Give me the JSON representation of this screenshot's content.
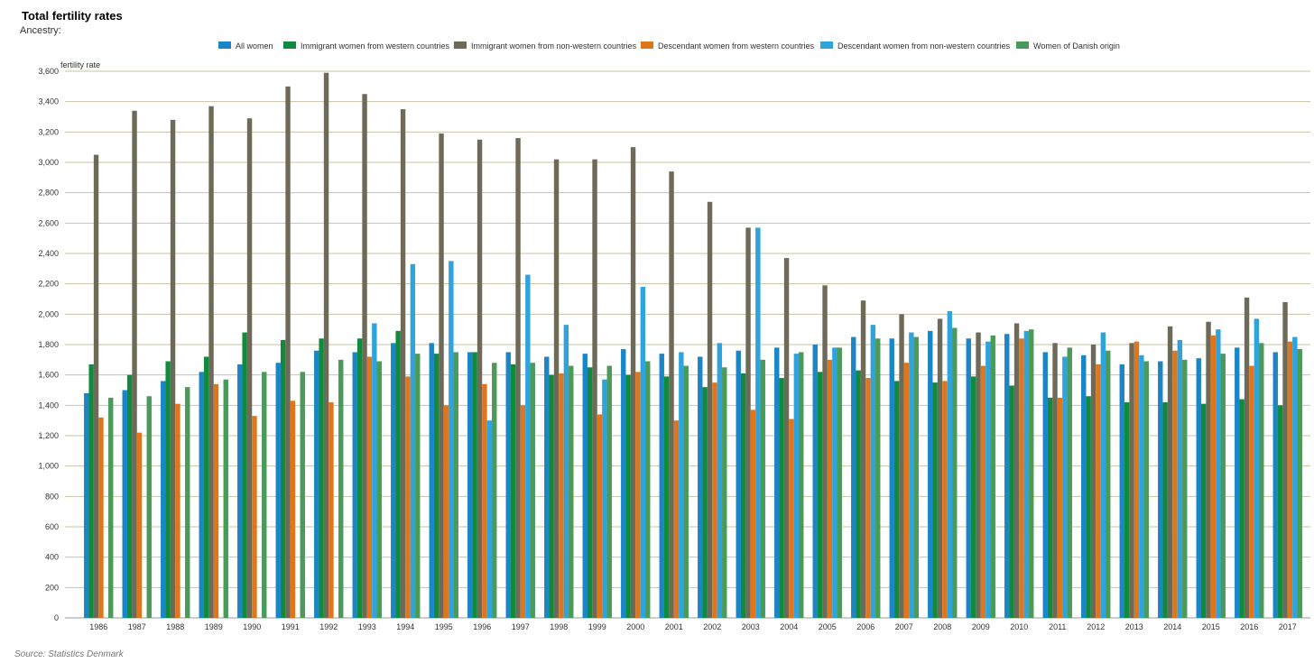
{
  "header": {
    "title": "Total fertility rates",
    "subtitle": "Ancestry:"
  },
  "footer": {
    "source": "Source: Statistics Denmark"
  },
  "chart_data": {
    "type": "bar",
    "title": "Total fertility rates",
    "ylabel": "fertility rate",
    "xlabel": "",
    "ylim": [
      0,
      3600
    ],
    "ytick_step": 200,
    "grid": true,
    "legend_position": "top",
    "categories": [
      "1986",
      "1987",
      "1988",
      "1989",
      "1990",
      "1991",
      "1992",
      "1993",
      "1994",
      "1995",
      "1996",
      "1997",
      "1998",
      "1999",
      "2000",
      "2001",
      "2002",
      "2003",
      "2004",
      "2005",
      "2006",
      "2007",
      "2008",
      "2009",
      "2010",
      "2011",
      "2012",
      "2013",
      "2014",
      "2015",
      "2016",
      "2017"
    ],
    "series": [
      {
        "name": "All women",
        "color": "#1a86c8",
        "values": [
          1480,
          1500,
          1560,
          1620,
          1670,
          1680,
          1760,
          1750,
          1810,
          1810,
          1750,
          1750,
          1720,
          1740,
          1770,
          1740,
          1720,
          1760,
          1780,
          1800,
          1850,
          1840,
          1890,
          1840,
          1870,
          1750,
          1730,
          1670,
          1690,
          1710,
          1780,
          1750
        ]
      },
      {
        "name": "Immigrant women from western countries",
        "color": "#108a3c",
        "values": [
          1670,
          1600,
          1690,
          1720,
          1880,
          1830,
          1840,
          1840,
          1890,
          1740,
          1750,
          1670,
          1600,
          1650,
          1600,
          1590,
          1520,
          1610,
          1580,
          1620,
          1630,
          1560,
          1550,
          1590,
          1530,
          1450,
          1460,
          1420,
          1420,
          1410,
          1440,
          1400
        ]
      },
      {
        "name": "Immigrant women from non-western countries",
        "color": "#6e6a58",
        "values": [
          3050,
          3340,
          3280,
          3370,
          3290,
          3500,
          3590,
          3450,
          3350,
          3190,
          3150,
          3160,
          3020,
          3020,
          3100,
          2940,
          2740,
          2570,
          2370,
          2190,
          2090,
          2000,
          1970,
          1880,
          1940,
          1810,
          1800,
          1810,
          1920,
          1950,
          2110,
          2080
        ]
      },
      {
        "name": "Descendant women from western countries",
        "color": "#e0761c",
        "values": [
          1320,
          1220,
          1410,
          1540,
          1330,
          1430,
          1420,
          1720,
          1590,
          1400,
          1540,
          1400,
          1610,
          1340,
          1620,
          1300,
          1550,
          1370,
          1310,
          1700,
          1580,
          1680,
          1560,
          1660,
          1840,
          1450,
          1670,
          1820,
          1760,
          1860,
          1660,
          1820
        ]
      },
      {
        "name": "Descendant women from non-western countries",
        "color": "#2fa3dc",
        "values": [
          0,
          0,
          0,
          0,
          0,
          0,
          0,
          1940,
          2330,
          2350,
          1300,
          2260,
          1930,
          1570,
          2180,
          1750,
          1810,
          2570,
          1740,
          1780,
          1930,
          1880,
          2020,
          1820,
          1890,
          1720,
          1880,
          1730,
          1830,
          1900,
          1970,
          1850
        ]
      },
      {
        "name": "Women of Danish origin",
        "color": "#4a9a5a",
        "values": [
          1450,
          1460,
          1520,
          1570,
          1620,
          1620,
          1700,
          1690,
          1740,
          1750,
          1680,
          1680,
          1660,
          1660,
          1690,
          1660,
          1650,
          1700,
          1750,
          1780,
          1840,
          1850,
          1910,
          1860,
          1900,
          1780,
          1760,
          1690,
          1700,
          1740,
          1810,
          1770
        ]
      }
    ]
  }
}
